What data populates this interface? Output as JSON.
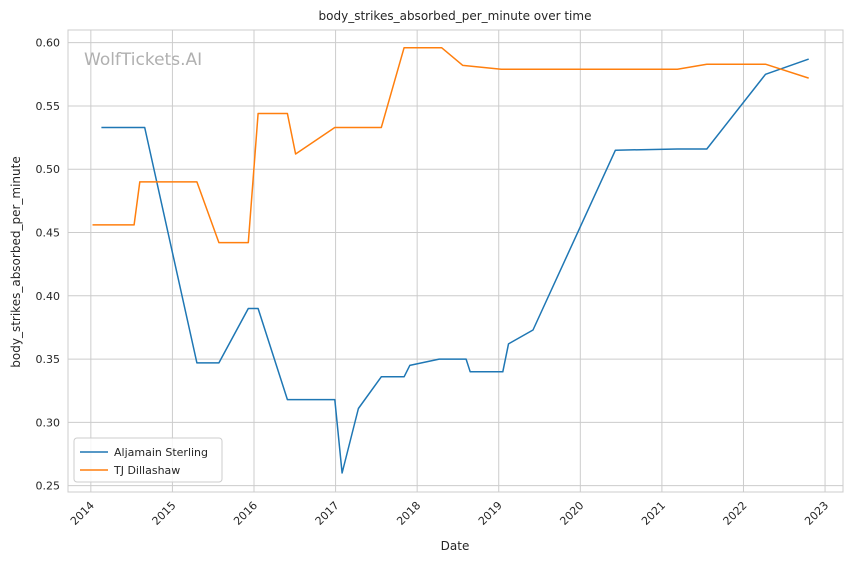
{
  "chart_data": {
    "type": "line",
    "title": "body_strikes_absorbed_per_minute over time",
    "xlabel": "Date",
    "ylabel": "body_strikes_absorbed_per_minute",
    "watermark": "WolfTickets.AI",
    "xlim": [
      2013.72,
      2023.22
    ],
    "ylim": [
      0.245,
      0.61
    ],
    "x_ticks": [
      2014,
      2015,
      2016,
      2017,
      2018,
      2019,
      2020,
      2021,
      2022,
      2023
    ],
    "x_tick_labels": [
      "2014",
      "2015",
      "2016",
      "2017",
      "2018",
      "2019",
      "2020",
      "2021",
      "2022",
      "2023"
    ],
    "y_ticks": [
      0.25,
      0.3,
      0.35,
      0.4,
      0.45,
      0.5,
      0.55,
      0.6
    ],
    "y_tick_labels": [
      "0.25",
      "0.30",
      "0.35",
      "0.40",
      "0.45",
      "0.50",
      "0.55",
      "0.60"
    ],
    "grid": true,
    "legend_position": "lower-left",
    "series": [
      {
        "name": "Aljamain Sterling",
        "color": "#1f77b4",
        "x": [
          2014.13,
          2014.66,
          2015.3,
          2015.57,
          2015.93,
          2016.05,
          2016.41,
          2016.99,
          2017.08,
          2017.28,
          2017.56,
          2017.84,
          2017.91,
          2018.27,
          2018.6,
          2018.65,
          2019.05,
          2019.12,
          2019.42,
          2020.43,
          2021.19,
          2021.55,
          2022.27,
          2022.8
        ],
        "y": [
          0.533,
          0.533,
          0.347,
          0.347,
          0.39,
          0.39,
          0.318,
          0.318,
          0.26,
          0.311,
          0.336,
          0.336,
          0.345,
          0.35,
          0.35,
          0.34,
          0.34,
          0.362,
          0.373,
          0.515,
          0.516,
          0.516,
          0.575,
          0.587
        ]
      },
      {
        "name": "TJ Dillashaw",
        "color": "#ff7f0e",
        "x": [
          2014.02,
          2014.53,
          2014.6,
          2015.3,
          2015.57,
          2015.93,
          2016.05,
          2016.41,
          2016.51,
          2016.99,
          2017.56,
          2017.84,
          2018.3,
          2018.56,
          2019.03,
          2021.19,
          2021.55,
          2022.27,
          2022.8
        ],
        "y": [
          0.456,
          0.456,
          0.49,
          0.49,
          0.442,
          0.442,
          0.544,
          0.544,
          0.512,
          0.533,
          0.533,
          0.596,
          0.596,
          0.582,
          0.579,
          0.579,
          0.583,
          0.583,
          0.572
        ]
      }
    ]
  }
}
